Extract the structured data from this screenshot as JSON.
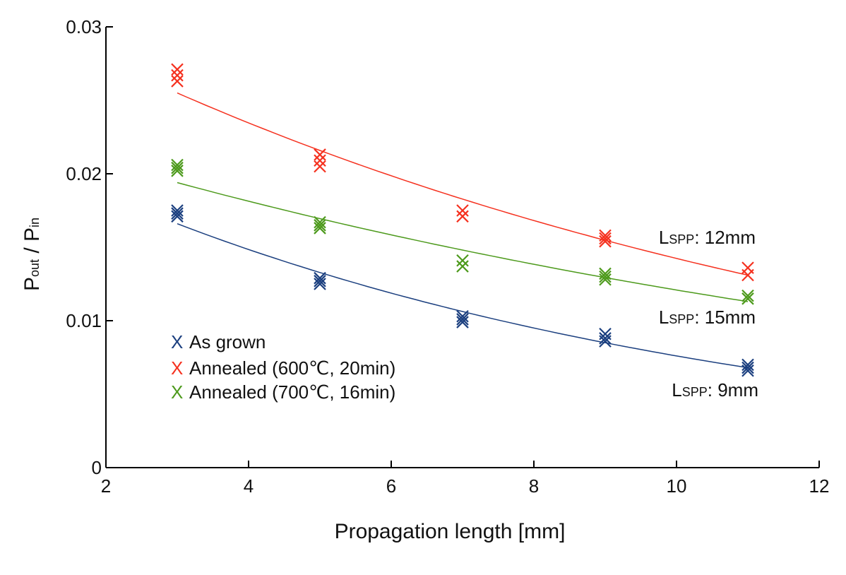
{
  "chart_data": {
    "type": "scatter",
    "title": "",
    "xlabel": "Propagation length [mm]",
    "ylabel": {
      "main": "P",
      "sub1": "out",
      "mid": " / P",
      "sub2": "in"
    },
    "xlim": [
      2,
      12
    ],
    "ylim": [
      0,
      0.03
    ],
    "xticks": [
      "2",
      "4",
      "6",
      "8",
      "10",
      "12"
    ],
    "yticks": [
      "0",
      "0.01",
      "0.02",
      "0.03"
    ],
    "grid": false,
    "legend_position": "lower-left inside plot",
    "series": [
      {
        "name": "As grown",
        "color": "#1b3f7f",
        "marker": "x",
        "points": [
          [
            3,
            0.0175
          ],
          [
            3,
            0.0173
          ],
          [
            3,
            0.0171
          ],
          [
            5,
            0.0129
          ],
          [
            5,
            0.0127
          ],
          [
            5,
            0.0125
          ],
          [
            7,
            0.0103
          ],
          [
            7,
            0.0101
          ],
          [
            7,
            0.0099
          ],
          [
            9,
            0.0091
          ],
          [
            9,
            0.0088
          ],
          [
            9,
            0.0086
          ],
          [
            11,
            0.007
          ],
          [
            11,
            0.0068
          ],
          [
            11,
            0.0066
          ]
        ],
        "fit": [
          [
            3,
            0.0166
          ],
          [
            11,
            0.0068
          ]
        ],
        "fit_label": {
          "L": "L",
          "sub": "SPP",
          "rest": ": 9mm"
        }
      },
      {
        "name": "Annealed (600℃, 20min)",
        "color": "#f5311f",
        "marker": "x",
        "points": [
          [
            3,
            0.0271
          ],
          [
            3,
            0.0267
          ],
          [
            3,
            0.0263
          ],
          [
            5,
            0.0213
          ],
          [
            5,
            0.0209
          ],
          [
            5,
            0.0205
          ],
          [
            7,
            0.0175
          ],
          [
            7,
            0.0171
          ],
          [
            9,
            0.0158
          ],
          [
            9,
            0.0156
          ],
          [
            9,
            0.0154
          ],
          [
            11,
            0.0136
          ],
          [
            11,
            0.0131
          ]
        ],
        "fit": [
          [
            3,
            0.0255
          ],
          [
            11,
            0.0131
          ]
        ],
        "fit_label": {
          "L": "L",
          "sub": "SPP",
          "rest": ": 12mm"
        }
      },
      {
        "name": "Annealed (700℃, 16min)",
        "color": "#4d9a1c",
        "marker": "x",
        "points": [
          [
            3,
            0.0206
          ],
          [
            3,
            0.0204
          ],
          [
            3,
            0.0202
          ],
          [
            5,
            0.0167
          ],
          [
            5,
            0.0165
          ],
          [
            5,
            0.0163
          ],
          [
            7,
            0.0141
          ],
          [
            7,
            0.0137
          ],
          [
            9,
            0.0132
          ],
          [
            9,
            0.013
          ],
          [
            9,
            0.0128
          ],
          [
            11,
            0.0117
          ],
          [
            11,
            0.0115
          ]
        ],
        "fit": [
          [
            3,
            0.0194
          ],
          [
            11,
            0.0113
          ]
        ],
        "fit_label": {
          "L": "L",
          "sub": "SPP",
          "rest": ": 15mm"
        }
      }
    ],
    "legend_marker_symbol": "X"
  }
}
